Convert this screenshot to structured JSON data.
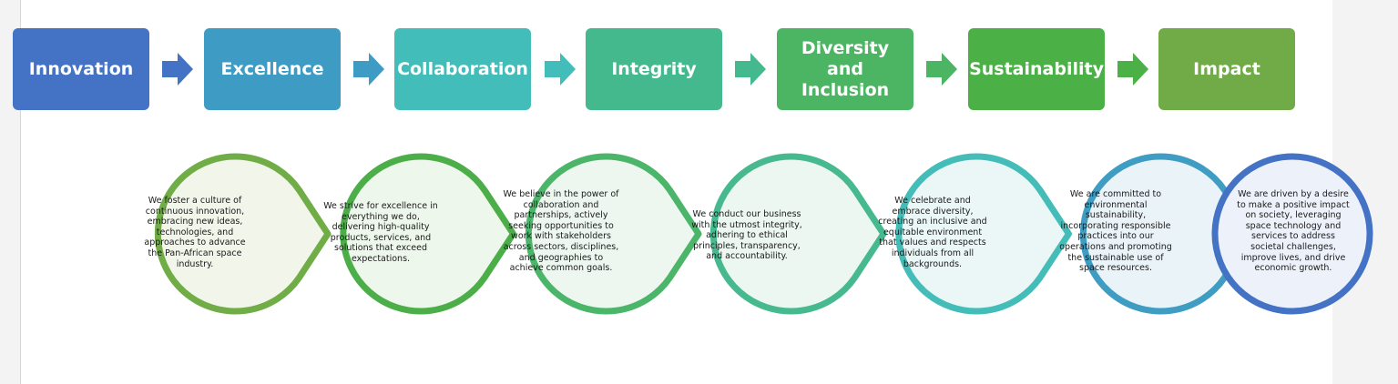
{
  "values": [
    {
      "title": "Innovation",
      "color": "#4472c4",
      "lead": "We",
      "text": "foster a culture of continuous innovation, embracing new ideas, technologies, and approaches to advance the Pan-African space industry.",
      "circle_stroke": "#71ad47",
      "circle_fill": "#f1f5ea"
    },
    {
      "title": "Excellence",
      "color": "#3e9bc4",
      "lead": "We",
      "text": "strive for excellence in everything we do, delivering high-quality products, services, and solutions that exceed expectations.",
      "circle_stroke": "#4cae48",
      "circle_fill": "#eef7ec"
    },
    {
      "title": "Collaboration",
      "color": "#43bdb9",
      "lead": "We",
      "text": "believe in the power of collaboration and partnerships, actively seeking opportunities to work with stakeholders across sectors, disciplines, and geographies to achieve common goals.",
      "circle_stroke": "#4bb56a",
      "circle_fill": "#edf7ef"
    },
    {
      "title": "Integrity",
      "color": "#45b98e",
      "lead": "We",
      "text": "conduct our business with the utmost integrity, adhering to ethical principles, transparency, and accountability.",
      "circle_stroke": "#47b98f",
      "circle_fill": "#ecf7f2"
    },
    {
      "title": "Diversity and Inclusion",
      "color": "#4bb563",
      "lead": "We",
      "text": "celebrate and embrace diversity, creating an inclusive and equitable environment that values and respects individuals from all backgrounds.",
      "circle_stroke": "#44bdb9",
      "circle_fill": "#ebf7f7"
    },
    {
      "title": "Sustainability",
      "color": "#4bb046",
      "lead": "We",
      "text": "are committed to environmental sustainability, incorporating responsible practices into our operations and promoting the sustainable use of space resources.",
      "circle_stroke": "#3f9dc3",
      "circle_fill": "#eaf3f8"
    },
    {
      "title": "Impact",
      "color": "#70ab48",
      "lead": "We",
      "text": "are driven by a desire to make a positive impact on society, leveraging space technology and services to address societal challenges, improve lives, and drive economic growth.",
      "circle_stroke": "#4472c4",
      "circle_fill": "#edf2fa"
    }
  ]
}
